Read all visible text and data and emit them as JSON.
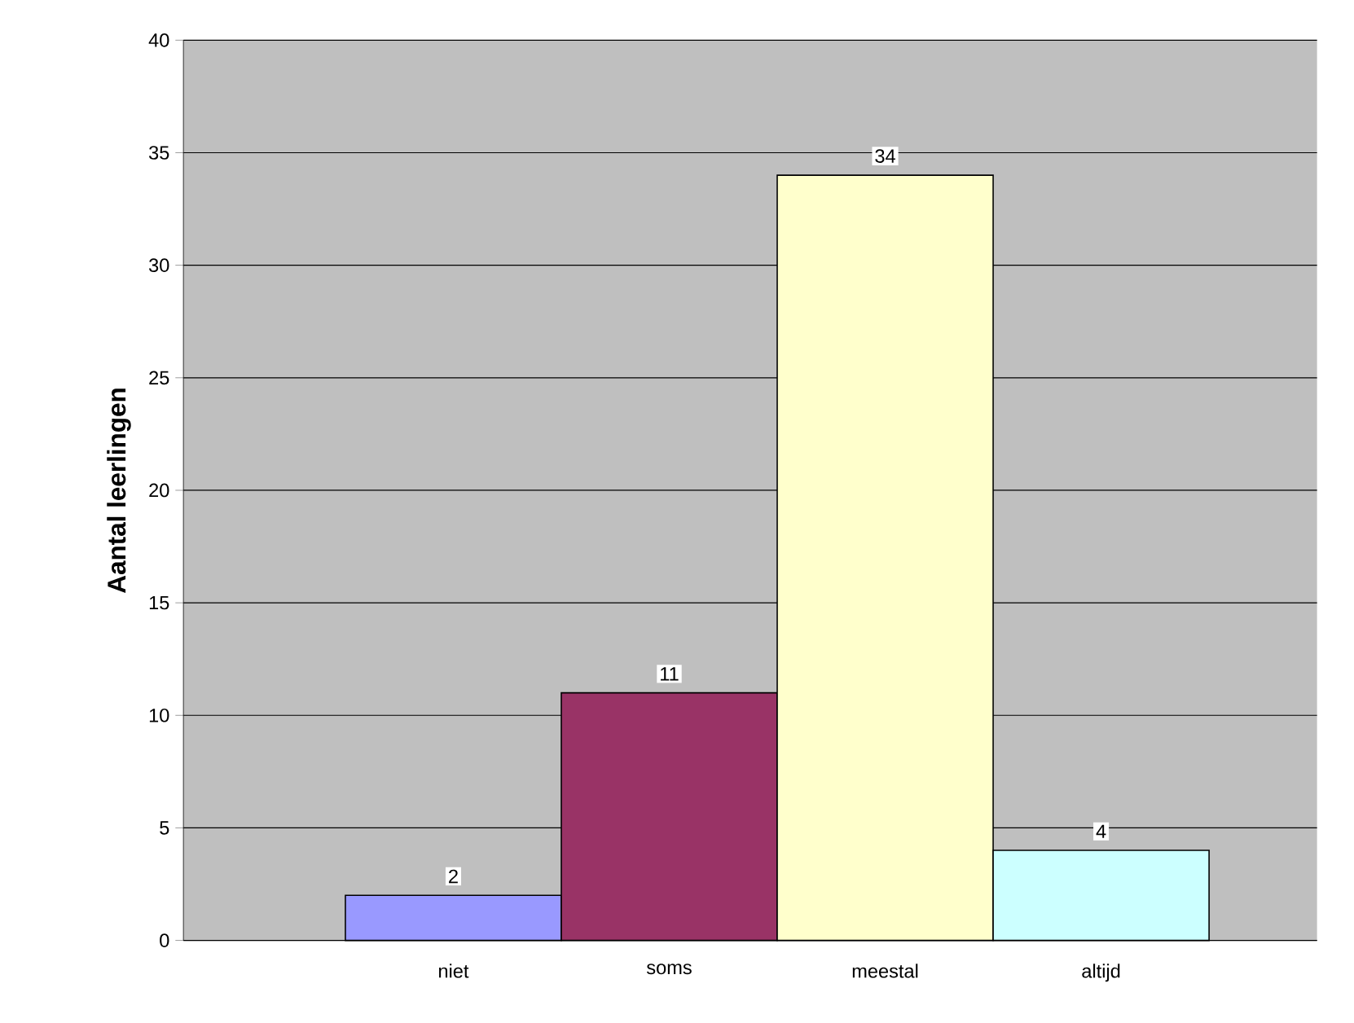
{
  "chart_data": {
    "type": "bar",
    "ylabel": "Aantal leerlingen",
    "categories": [
      "niet",
      "soms",
      "meestal",
      "altijd"
    ],
    "values": [
      2,
      11,
      34,
      4
    ],
    "colors": [
      "#9999ff",
      "#993366",
      "#ffffcc",
      "#ccffff"
    ],
    "ylim": [
      0,
      40
    ],
    "yticks": [
      0,
      5,
      10,
      15,
      20,
      25,
      30,
      35,
      40
    ],
    "grid": "y",
    "data_labels": true
  }
}
